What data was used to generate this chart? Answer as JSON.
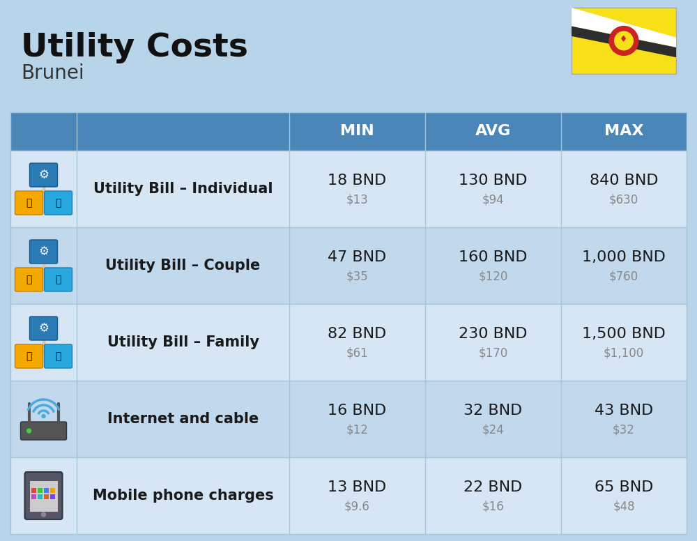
{
  "title": "Utility Costs",
  "subtitle": "Brunei",
  "background_color": "#b8d4e8",
  "header_color": "#4a86b8",
  "header_text_color": "#ffffff",
  "row_color_light": "#d6e6f5",
  "row_color_dark": "#c2d8ed",
  "cell_text_color": "#1a1a1a",
  "sub_text_color": "#888888",
  "col_headers": [
    "MIN",
    "AVG",
    "MAX"
  ],
  "rows": [
    {
      "label": "Utility Bill – Individual",
      "min_bnd": "18 BND",
      "min_usd": "$13",
      "avg_bnd": "130 BND",
      "avg_usd": "$94",
      "max_bnd": "840 BND",
      "max_usd": "$630",
      "icon_type": "utility"
    },
    {
      "label": "Utility Bill – Couple",
      "min_bnd": "47 BND",
      "min_usd": "$35",
      "avg_bnd": "160 BND",
      "avg_usd": "$120",
      "max_bnd": "1,000 BND",
      "max_usd": "$760",
      "icon_type": "utility"
    },
    {
      "label": "Utility Bill – Family",
      "min_bnd": "82 BND",
      "min_usd": "$61",
      "avg_bnd": "230 BND",
      "avg_usd": "$170",
      "max_bnd": "1,500 BND",
      "max_usd": "$1,100",
      "icon_type": "utility"
    },
    {
      "label": "Internet and cable",
      "min_bnd": "16 BND",
      "min_usd": "$12",
      "avg_bnd": "32 BND",
      "avg_usd": "$24",
      "max_bnd": "43 BND",
      "max_usd": "$32",
      "icon_type": "internet"
    },
    {
      "label": "Mobile phone charges",
      "min_bnd": "13 BND",
      "min_usd": "$9.6",
      "avg_bnd": "22 BND",
      "avg_usd": "$16",
      "max_bnd": "65 BND",
      "max_usd": "$48",
      "icon_type": "phone"
    }
  ],
  "title_fontsize": 34,
  "subtitle_fontsize": 20,
  "header_fontsize": 16,
  "label_fontsize": 15,
  "value_fontsize": 16,
  "sub_value_fontsize": 12
}
